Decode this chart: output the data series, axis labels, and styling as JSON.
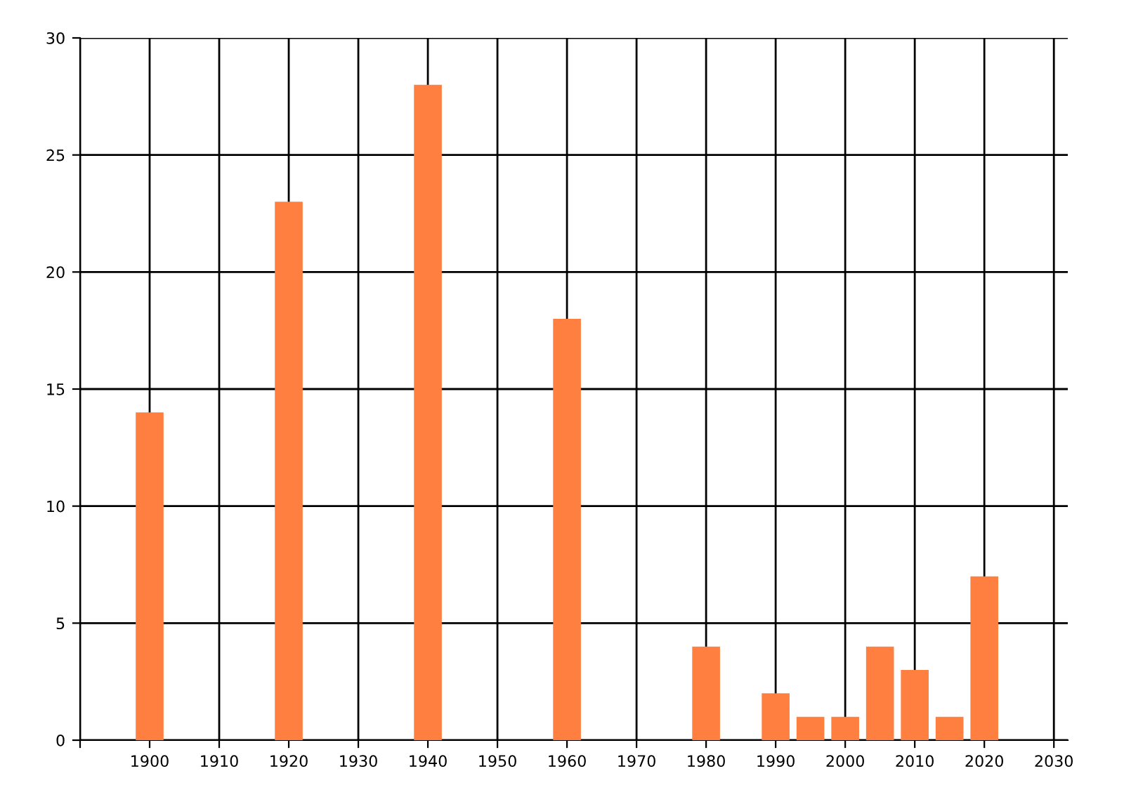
{
  "chart_data": {
    "type": "bar",
    "x": [
      1900,
      1920,
      1940,
      1960,
      1980,
      1990,
      1995,
      2000,
      2005,
      2010,
      2015,
      2020
    ],
    "values": [
      14,
      23,
      28,
      18,
      4,
      2,
      1,
      1,
      4,
      3,
      1,
      7
    ],
    "color": "#ff7f40",
    "xlim": [
      1890,
      2032
    ],
    "xticks": [
      {
        "value": 1890,
        "label": null
      },
      1900,
      1910,
      1920,
      1930,
      1940,
      1950,
      1960,
      1970,
      1980,
      1990,
      2000,
      2010,
      2020,
      2030
    ],
    "ylim": [
      0,
      30
    ],
    "yticks": [
      0,
      5,
      10,
      15,
      20,
      25,
      30
    ],
    "grid": true,
    "legend": false
  }
}
